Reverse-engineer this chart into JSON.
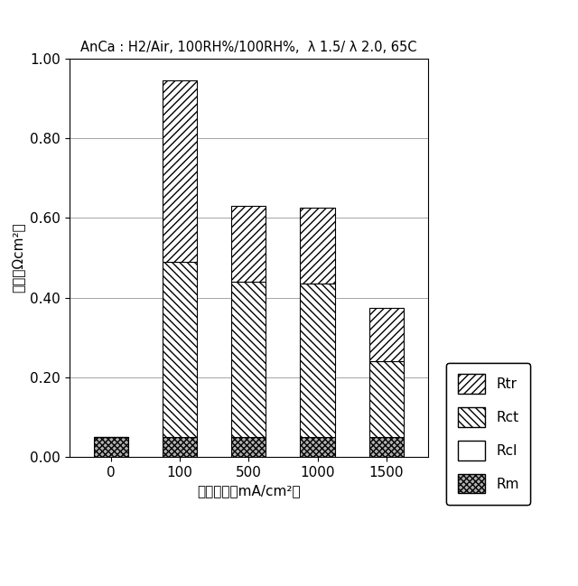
{
  "title": "AnCa : H2/Air, 100RH%/100RH%,  λ 1.5/ λ 2.0, 65C",
  "xlabel": "電流密度［mA/cm²］",
  "ylabel": "抵抗（Ωcm²）",
  "categories": [
    "0",
    "100",
    "500",
    "1000",
    "1500"
  ],
  "Rm": [
    0.05,
    0.05,
    0.05,
    0.05,
    0.05
  ],
  "Rcl": [
    0.0,
    0.0,
    0.0,
    0.0,
    0.0
  ],
  "Rct": [
    0.0,
    0.44,
    0.39,
    0.385,
    0.19
  ],
  "Rtr": [
    0.0,
    0.455,
    0.19,
    0.19,
    0.135
  ],
  "ylim": [
    0.0,
    1.0
  ],
  "yticks": [
    0.0,
    0.2,
    0.4,
    0.6,
    0.8,
    1.0
  ],
  "bar_width": 0.5,
  "color_Rtr": "#ffffff",
  "color_Rct": "#ffffff",
  "color_Rcl": "#ffffff",
  "color_Rm": "#b0b0b0",
  "hatch_Rtr": "////",
  "hatch_Rct": "\\\\\\\\",
  "hatch_Rcl": "",
  "hatch_Rm": "xxxxx"
}
